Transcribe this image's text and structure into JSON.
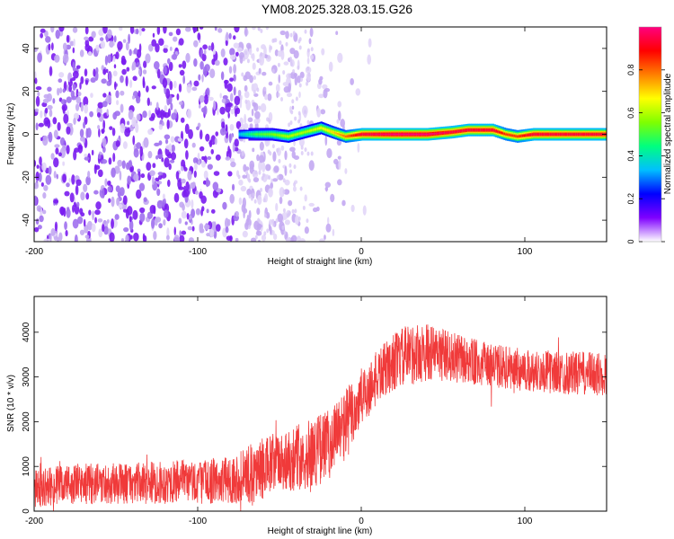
{
  "title": "YM08.2025.328.03.15.G26",
  "chart_data": [
    {
      "type": "heatmap",
      "xlabel": "Height of straight line (km)",
      "ylabel": "Frequency (Hz)",
      "xlim": [
        -200,
        150
      ],
      "ylim": [
        -50,
        50
      ],
      "x_ticks": [
        -200,
        -100,
        0,
        100
      ],
      "y_ticks": [
        -40,
        -20,
        0,
        20,
        40
      ],
      "colorbar": {
        "label": "Normalized spectral amplitude",
        "range": [
          0,
          1
        ],
        "ticks": [
          0,
          0.2,
          0.4,
          0.6,
          0.8
        ],
        "colors": [
          "#ffffff",
          "#7f00ff",
          "#0000ff",
          "#00bfff",
          "#00ff7f",
          "#7fff00",
          "#ffff00",
          "#ff7f00",
          "#ff0000",
          "#ff0080"
        ]
      },
      "noise_region_x": [
        -200,
        -30
      ],
      "ridge": {
        "x": [
          -75,
          -65,
          -55,
          -45,
          -35,
          -25,
          -18,
          -10,
          0,
          20,
          40,
          55,
          65,
          80,
          88,
          95,
          105,
          120,
          150
        ],
        "freq": [
          0,
          0,
          0,
          -1,
          1,
          3,
          1,
          -1,
          0,
          0,
          0,
          1,
          2,
          2,
          0,
          -1,
          0,
          0,
          0
        ],
        "amplitude": [
          0.35,
          0.5,
          0.55,
          0.6,
          0.6,
          0.65,
          0.7,
          0.8,
          0.95,
          1.0,
          1.0,
          0.95,
          0.95,
          0.95,
          0.85,
          0.85,
          0.95,
          0.95,
          0.95
        ]
      }
    },
    {
      "type": "line",
      "xlabel": "Height of straight line (km)",
      "ylabel": "SNR (10 * v/v)",
      "xlim": [
        -200,
        150
      ],
      "ylim": [
        0,
        4800
      ],
      "x_ticks": [
        -200,
        -100,
        0,
        100
      ],
      "y_ticks": [
        0,
        1000,
        2000,
        3000,
        4000
      ],
      "color": "#f03a3a",
      "envelope": {
        "x": [
          -200,
          -180,
          -160,
          -140,
          -120,
          -100,
          -80,
          -70,
          -60,
          -50,
          -40,
          -30,
          -20,
          -10,
          0,
          10,
          20,
          30,
          40,
          50,
          60,
          80,
          100,
          120,
          150
        ],
        "mean": [
          500,
          600,
          620,
          620,
          640,
          660,
          700,
          800,
          950,
          1100,
          1200,
          1300,
          1500,
          1900,
          2500,
          3000,
          3350,
          3500,
          3550,
          3500,
          3400,
          3250,
          3150,
          3100,
          3050
        ],
        "spread": [
          420,
          450,
          460,
          460,
          480,
          500,
          520,
          650,
          700,
          700,
          750,
          800,
          800,
          850,
          700,
          600,
          650,
          700,
          650,
          600,
          550,
          500,
          480,
          480,
          500
        ]
      }
    }
  ]
}
